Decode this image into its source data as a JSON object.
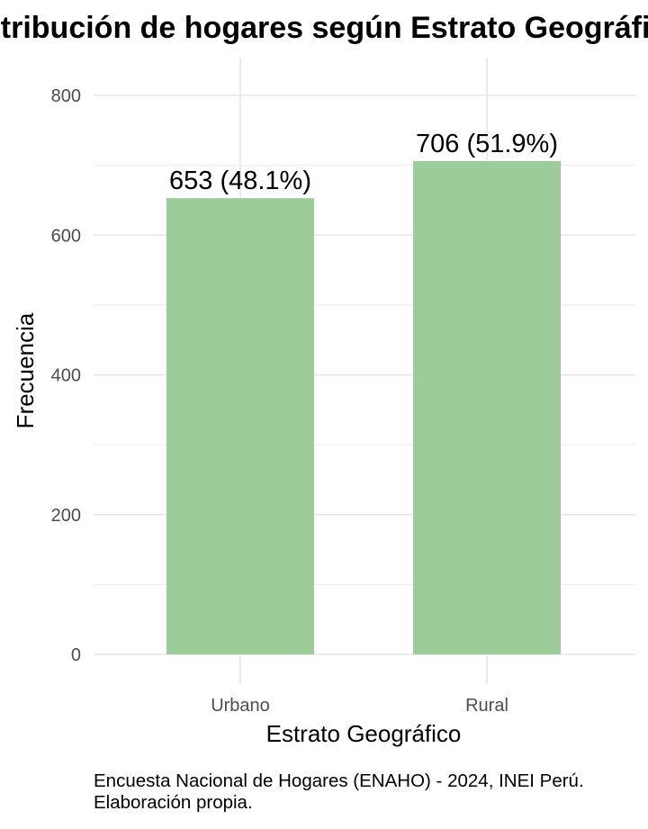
{
  "chart_data": {
    "type": "bar",
    "title": "Distribución de hogares según Estrato Geográfico",
    "xlabel": "Estrato Geográfico",
    "ylabel": "Frecuencia",
    "categories": [
      "Urbano",
      "Rural"
    ],
    "values": [
      653,
      706
    ],
    "data_labels": [
      "653 (48.1%)",
      "706 (51.9%)"
    ],
    "ylim": [
      0,
      800
    ],
    "yticks": [
      0,
      200,
      400,
      600,
      800
    ],
    "bar_color": "#9ccc9a",
    "grid": true,
    "legend": "none"
  },
  "caption": {
    "line1": "Encuesta Nacional de Hogares (ENAHO) - 2024, INEI Perú.",
    "line2": "Elaboración propia."
  }
}
